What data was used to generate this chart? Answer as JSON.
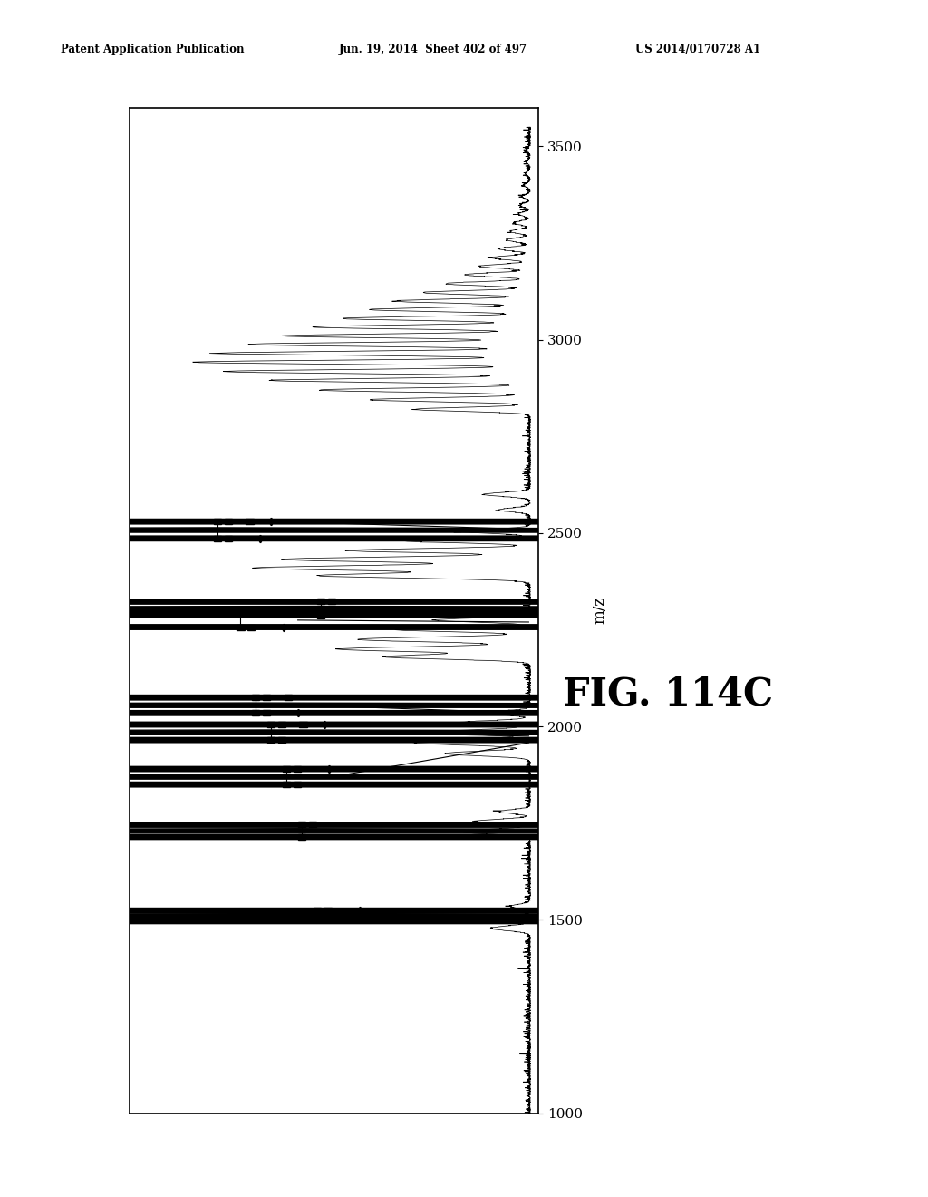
{
  "title": "FIG. 114C",
  "header_left": "Patent Application Publication",
  "header_center": "Jun. 19, 2014  Sheet 402 of 497",
  "header_right": "US 2014/0170728 A1",
  "mz_label": "m/z",
  "mz_ticks": [
    1000,
    1500,
    2000,
    2500,
    3000,
    3500
  ],
  "background_color": "#ffffff",
  "xlim": [
    1000,
    3600
  ],
  "ylim": [
    0,
    1.05
  ]
}
